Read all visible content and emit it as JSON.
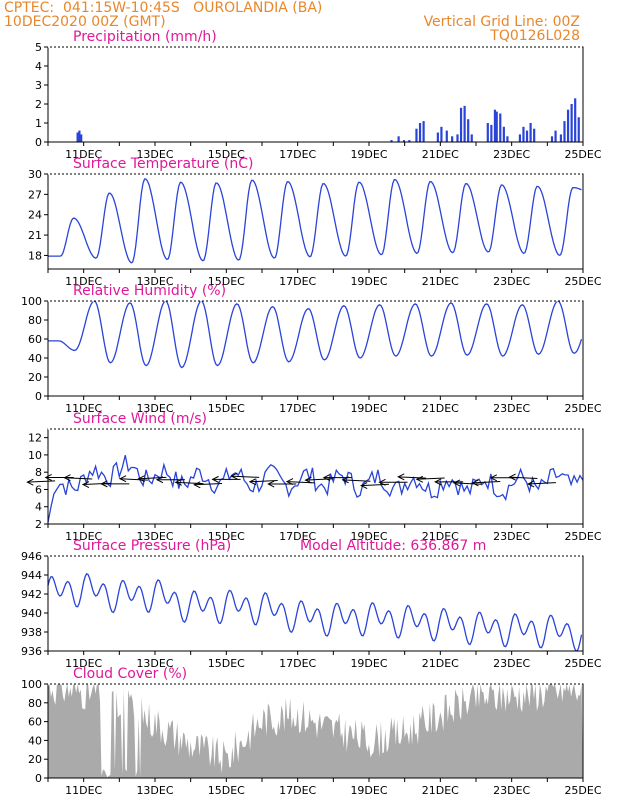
{
  "header": {
    "line1": "CPTEC:  041:15W-10:45S   OUROLANDIA (BA)",
    "line2": "10DEC2020 00Z (GMT)",
    "vgrid": "Vertical Grid Line: 00Z",
    "code": "TQ0126L028"
  },
  "colors": {
    "line": "#2a44d8",
    "bar": "#2a44d8",
    "cloud": "#aaaaaa",
    "title": "#e0189a",
    "header": "#e8872c"
  },
  "x_axis": {
    "start": "10DEC2020 00Z",
    "end": "25DEC2020 00Z",
    "tick_labels": [
      "11DEC",
      "13DEC",
      "15DEC",
      "17DEC",
      "19DEC",
      "21DEC",
      "23DEC",
      "25DEC"
    ],
    "tick_days": [
      11,
      13,
      15,
      17,
      19,
      21,
      23,
      25
    ]
  },
  "chart_data": [
    {
      "type": "bar",
      "title": "Precipitation (mm/h)",
      "ylim": [
        0,
        5
      ],
      "yticks": [
        0,
        1,
        2,
        3,
        4,
        5
      ],
      "bars": [
        [
          10.8,
          0.5
        ],
        [
          10.85,
          0.6
        ],
        [
          10.9,
          0.4
        ],
        [
          19.6,
          0.1
        ],
        [
          19.8,
          0.3
        ],
        [
          19.95,
          0.1
        ],
        [
          20.1,
          0.1
        ],
        [
          20.3,
          0.7
        ],
        [
          20.4,
          1.0
        ],
        [
          20.5,
          1.1
        ],
        [
          20.9,
          0.5
        ],
        [
          21.0,
          0.8
        ],
        [
          21.15,
          0.6
        ],
        [
          21.3,
          0.3
        ],
        [
          21.45,
          0.4
        ],
        [
          21.55,
          1.8
        ],
        [
          21.65,
          1.9
        ],
        [
          21.75,
          1.2
        ],
        [
          21.85,
          0.4
        ],
        [
          22.3,
          1.0
        ],
        [
          22.4,
          0.9
        ],
        [
          22.5,
          1.7
        ],
        [
          22.55,
          1.6
        ],
        [
          22.65,
          1.5
        ],
        [
          22.75,
          0.8
        ],
        [
          22.85,
          0.3
        ],
        [
          23.2,
          0.4
        ],
        [
          23.3,
          0.8
        ],
        [
          23.4,
          0.6
        ],
        [
          23.5,
          1.0
        ],
        [
          23.6,
          0.7
        ],
        [
          24.1,
          0.3
        ],
        [
          24.2,
          0.6
        ],
        [
          24.35,
          0.4
        ],
        [
          24.45,
          1.1
        ],
        [
          24.55,
          1.7
        ],
        [
          24.65,
          2.0
        ],
        [
          24.75,
          2.3
        ],
        [
          24.85,
          1.3
        ]
      ]
    },
    {
      "type": "line",
      "title": "Surface Temperature (nC)",
      "ylim": [
        16,
        30
      ],
      "yticks": [
        18,
        21,
        24,
        27,
        30
      ],
      "daily_max": [
        23.5,
        27.2,
        29.3,
        28.8,
        28.7,
        29.1,
        28.9,
        28.6,
        28.8,
        29.2,
        28.9,
        28.6,
        28.4,
        28.2,
        28.0,
        25.5
      ],
      "daily_min": [
        17.9,
        17.6,
        16.9,
        17.4,
        17.2,
        17.3,
        17.6,
        17.8,
        17.9,
        18.1,
        18.3,
        18.4,
        18.5,
        18.3,
        18.0
      ]
    },
    {
      "type": "line",
      "title": "Relative Humidity (%)",
      "ylim": [
        0,
        100
      ],
      "yticks": [
        0,
        20,
        40,
        60,
        80,
        100
      ],
      "daily_max": [
        58,
        100,
        98,
        100,
        100,
        97,
        94,
        92,
        95,
        96,
        97,
        98,
        97,
        96,
        100,
        92
      ],
      "daily_min": [
        48,
        35,
        32,
        30,
        32,
        35,
        36,
        38,
        40,
        42,
        42,
        43,
        42,
        44,
        45
      ]
    },
    {
      "type": "line",
      "title": "Surface Wind (m/s)",
      "ylim": [
        2,
        13
      ],
      "yticks": [
        2,
        4,
        6,
        8,
        10,
        12
      ],
      "daily_mean": [
        5.5,
        7.3,
        8.4,
        7.6,
        7.2,
        7.3,
        7.0,
        7.1,
        7.0,
        6.8,
        6.7,
        6.6,
        6.5,
        6.6,
        6.8,
        7.2
      ],
      "noise": 1.2
    },
    {
      "type": "line",
      "title": "Surface Pressure (hPa)",
      "annotation": "Model Altitude: 636.867 m",
      "ylim": [
        936,
        946
      ],
      "yticks": [
        936,
        938,
        940,
        942,
        944,
        946
      ],
      "daily_mean": [
        942.2,
        942.6,
        941.8,
        942.0,
        940.7,
        940.8,
        940.6,
        939.7,
        939.4,
        939.5,
        939.2,
        938.9,
        938.5,
        938.3,
        938.2,
        937.8
      ],
      "amplitude": 2.2
    },
    {
      "type": "bar",
      "title": "Cloud Cover (%)",
      "ylim": [
        0,
        100
      ],
      "yticks": [
        0,
        20,
        40,
        60,
        80,
        100
      ],
      "mean_profile": [
        98,
        92,
        82,
        60,
        35,
        20,
        62,
        68,
        52,
        40,
        48,
        68,
        85,
        88,
        92,
        95
      ]
    }
  ]
}
